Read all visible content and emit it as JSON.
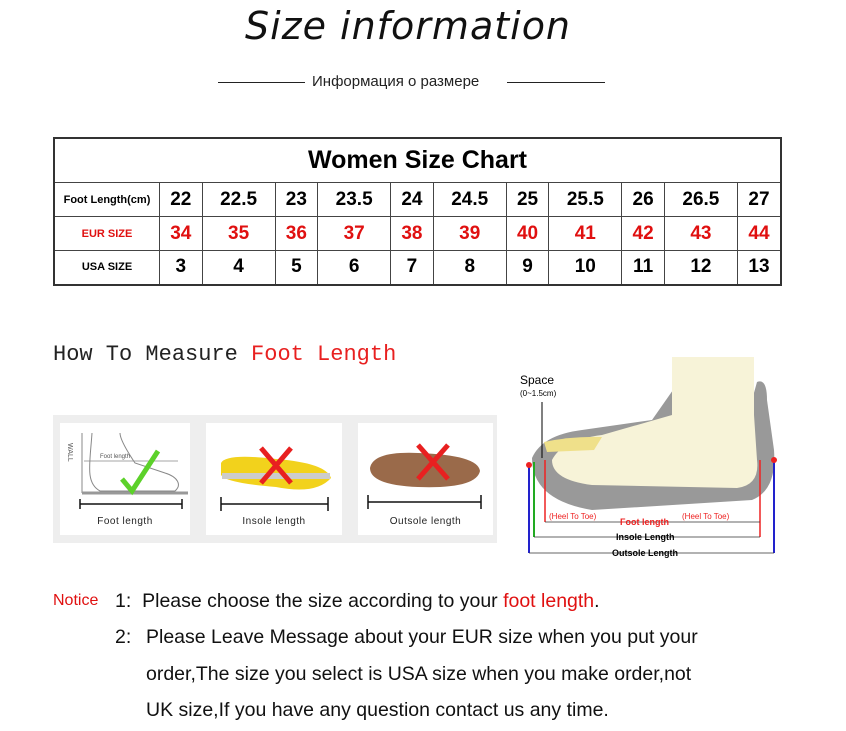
{
  "header": {
    "title": "Size information",
    "subtitle": "Информация о размере"
  },
  "size_chart": {
    "caption": "Women Size Chart",
    "rows": [
      {
        "label": "Foot Length(cm)",
        "values": [
          "22",
          "22.5",
          "23",
          "23.5",
          "24",
          "24.5",
          "25",
          "25.5",
          "26",
          "26.5",
          "27"
        ]
      },
      {
        "label": "EUR SIZE",
        "values": [
          "34",
          "35",
          "36",
          "37",
          "38",
          "39",
          "40",
          "41",
          "42",
          "43",
          "44"
        ]
      },
      {
        "label": "USA SIZE",
        "values": [
          "3",
          "4",
          "5",
          "6",
          "7",
          "8",
          "9",
          "10",
          "11",
          "12",
          "13"
        ]
      }
    ]
  },
  "measure": {
    "heading": "How To Measure ",
    "heading_highlight": "Foot Length",
    "cards": [
      {
        "label": "Foot length",
        "wall": "WALL",
        "inner": "Foot length",
        "mark": "check"
      },
      {
        "label": "Insole length",
        "mark": "cross"
      },
      {
        "label": "Outsole length",
        "mark": "cross"
      }
    ]
  },
  "diagram": {
    "space": "Space",
    "space_range": "(0~1.5cm)",
    "heel_to_toe": "(Heel To Toe)",
    "foot_length": "Foot length",
    "insole_length": "Insole Length",
    "outsole_length": "Outsole Length"
  },
  "notice": {
    "label": "Notice",
    "items": [
      {
        "num": "1:",
        "text": "Please choose the size according to your ",
        "highlight": "foot length",
        "end": "."
      },
      {
        "num": "2:",
        "lines": [
          "Please Leave Message about your EUR size when you put your",
          "order,The size you select is USA size when you make order,not",
          "UK size,If you have any question  contact us any time."
        ]
      }
    ]
  },
  "colors": {
    "accent_red": "#e01010",
    "check_green": "#5cd12a"
  }
}
